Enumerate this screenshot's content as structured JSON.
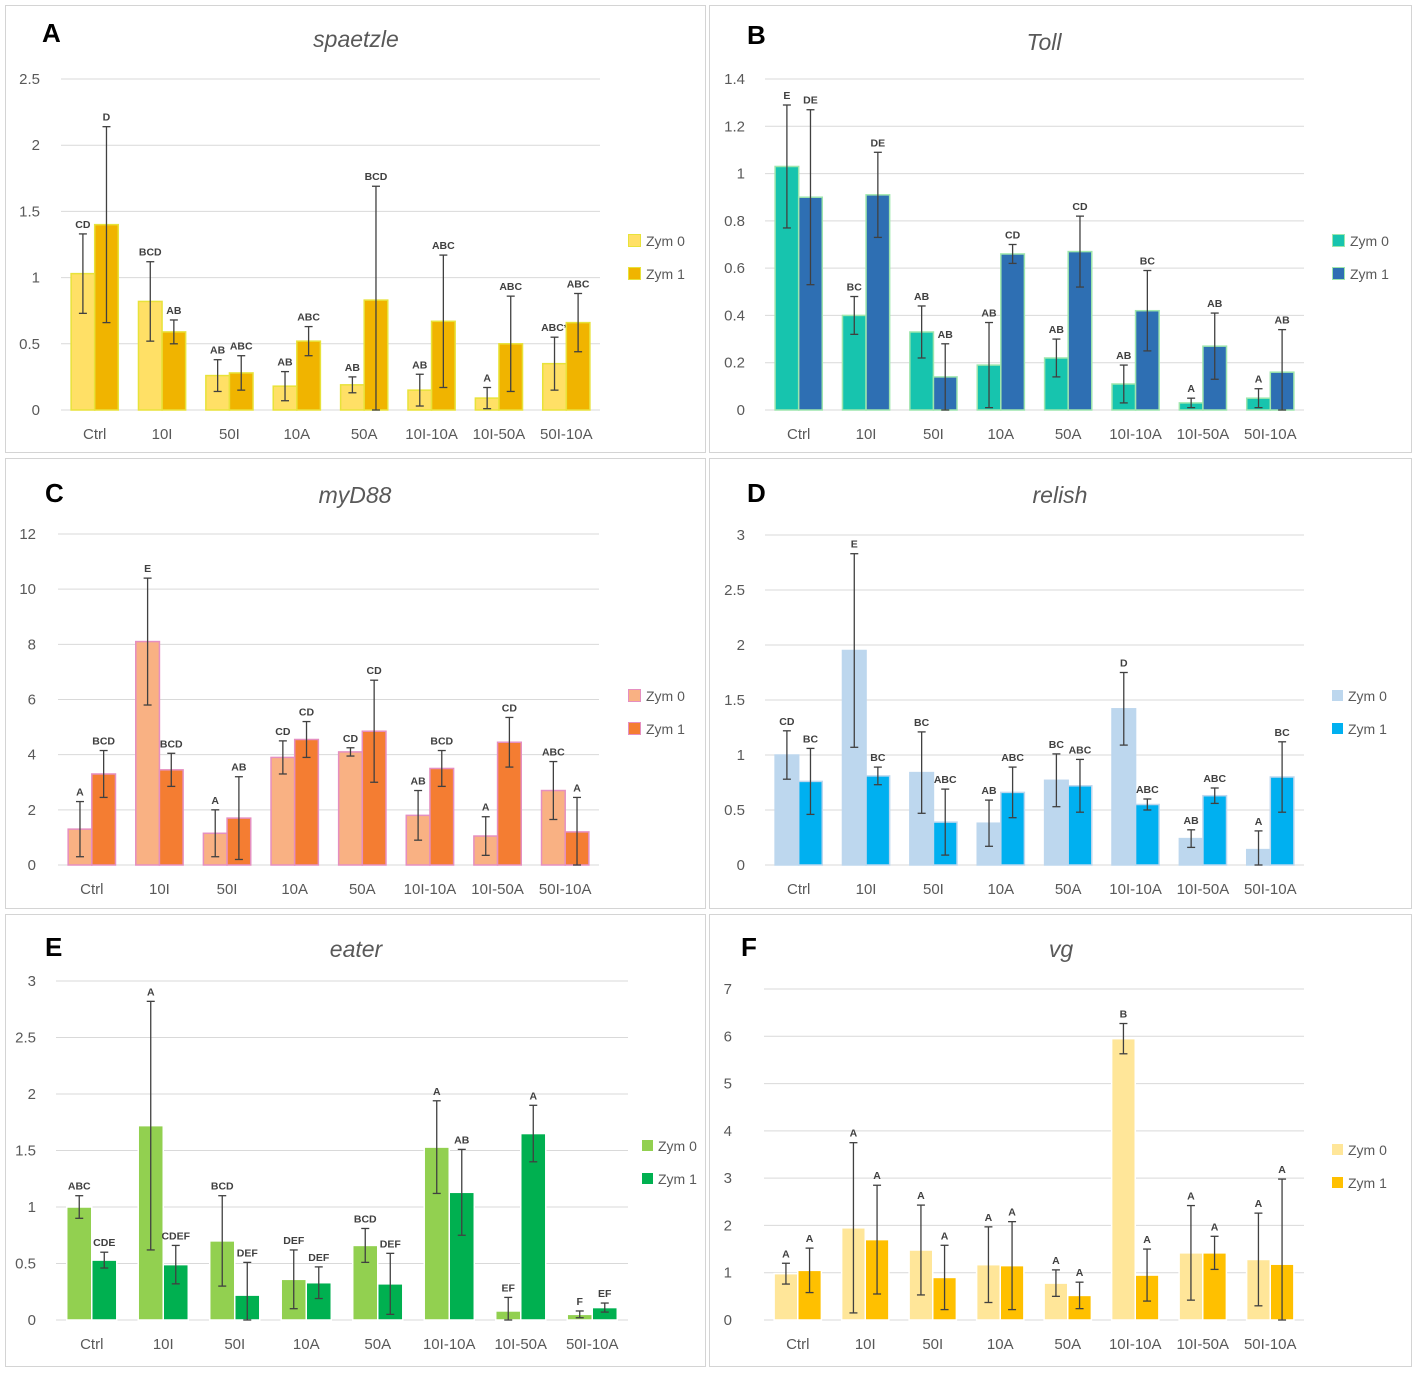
{
  "figure": {
    "categories": [
      "Ctrl",
      "10I",
      "50I",
      "10A",
      "50A",
      "10I-10A",
      "10I-50A",
      "50I-10A"
    ],
    "legend": [
      "Zym 0",
      "Zym 1"
    ]
  },
  "chart_data": [
    {
      "panel": "A",
      "title": "spaetzle",
      "type": "bar",
      "categories": [
        "Ctrl",
        "10I",
        "50I",
        "10A",
        "50A",
        "10I-10A",
        "10I-50A",
        "50I-10A"
      ],
      "ylim": [
        0,
        2.5
      ],
      "yticks": [
        "0",
        "0.5",
        "1",
        "1.5",
        "2",
        "2.5"
      ],
      "colors": [
        "#ffe066",
        "#f0b400"
      ],
      "edge": "#e8e23a",
      "series": [
        {
          "name": "Zym 0",
          "values": [
            1.03,
            0.82,
            0.26,
            0.18,
            0.19,
            0.15,
            0.09,
            0.35
          ],
          "errors": [
            0.3,
            0.3,
            0.12,
            0.11,
            0.06,
            0.12,
            0.08,
            0.2
          ],
          "letters": [
            "CD",
            "BCD",
            "AB",
            "AB",
            "AB",
            "AB",
            "A",
            "ABC*"
          ]
        },
        {
          "name": "Zym 1",
          "values": [
            1.4,
            0.59,
            0.28,
            0.52,
            0.83,
            0.67,
            0.5,
            0.66
          ],
          "errors": [
            0.74,
            0.09,
            0.13,
            0.11,
            0.86,
            0.5,
            0.36,
            0.22
          ],
          "letters": [
            "D",
            "AB",
            "ABC",
            "ABC",
            "BCD",
            "ABC",
            "ABC",
            "ABC"
          ]
        }
      ]
    },
    {
      "panel": "B",
      "title": "Toll",
      "type": "bar",
      "categories": [
        "Ctrl",
        "10I",
        "50I",
        "10A",
        "50A",
        "10I-10A",
        "10I-50A",
        "50I-10A"
      ],
      "ylim": [
        0,
        1.4
      ],
      "yticks": [
        "0",
        "0.2",
        "0.4",
        "0.6",
        "0.8",
        "1",
        "1.2",
        "1.4"
      ],
      "colors": [
        "#17c4ae",
        "#2e6fb3"
      ],
      "edge": "#9ee6ad",
      "series": [
        {
          "name": "Zym 0",
          "values": [
            1.03,
            0.4,
            0.33,
            0.19,
            0.22,
            0.11,
            0.03,
            0.05
          ],
          "errors": [
            0.26,
            0.08,
            0.11,
            0.18,
            0.08,
            0.08,
            0.02,
            0.04
          ],
          "letters": [
            "E",
            "BC",
            "AB",
            "AB",
            "AB",
            "AB",
            "A",
            "A"
          ]
        },
        {
          "name": "Zym 1",
          "values": [
            0.9,
            0.91,
            0.14,
            0.66,
            0.67,
            0.42,
            0.27,
            0.16
          ],
          "errors": [
            0.37,
            0.18,
            0.14,
            0.04,
            0.15,
            0.17,
            0.14,
            0.18
          ],
          "letters": [
            "DE",
            "DE",
            "AB",
            "CD",
            "CD",
            "BC",
            "AB",
            "AB"
          ]
        }
      ]
    },
    {
      "panel": "C",
      "title": "myD88",
      "type": "bar",
      "categories": [
        "Ctrl",
        "10I",
        "50I",
        "10A",
        "50A",
        "10I-10A",
        "10I-50A",
        "50I-10A"
      ],
      "ylim": [
        0,
        12
      ],
      "yticks": [
        "0",
        "2",
        "4",
        "6",
        "8",
        "10",
        "12"
      ],
      "colors": [
        "#f9b183",
        "#f47d32"
      ],
      "edge": "#e58fc0",
      "series": [
        {
          "name": "Zym 0",
          "values": [
            1.3,
            8.1,
            1.15,
            3.9,
            4.1,
            1.8,
            1.05,
            2.7
          ],
          "errors": [
            1.0,
            2.3,
            0.85,
            0.6,
            0.15,
            0.9,
            0.7,
            1.05
          ],
          "letters": [
            "A",
            "E",
            "A",
            "CD",
            "CD",
            "AB",
            "A",
            "ABC"
          ]
        },
        {
          "name": "Zym 1",
          "values": [
            3.3,
            3.45,
            1.7,
            4.55,
            4.85,
            3.5,
            4.45,
            1.2
          ],
          "errors": [
            0.85,
            0.6,
            1.5,
            0.65,
            1.85,
            0.65,
            0.9,
            1.25
          ],
          "letters": [
            "BCD",
            "BCD",
            "AB",
            "CD",
            "CD",
            "BCD",
            "CD",
            "A"
          ]
        }
      ]
    },
    {
      "panel": "D",
      "title": "relish",
      "type": "bar",
      "categories": [
        "Ctrl",
        "10I",
        "50I",
        "10A",
        "50A",
        "10I-10A",
        "10I-50A",
        "50I-10A"
      ],
      "ylim": [
        0,
        3
      ],
      "yticks": [
        "0",
        "0.5",
        "1",
        "1.5",
        "2",
        "2.5",
        "3"
      ],
      "colors": [
        "#bdd7ee",
        "#00b0f0"
      ],
      "edge": "#bdd7ee",
      "series": [
        {
          "name": "Zym 0",
          "values": [
            1.0,
            1.95,
            0.84,
            0.38,
            0.77,
            1.42,
            0.24,
            0.14
          ],
          "errors": [
            0.22,
            0.88,
            0.37,
            0.21,
            0.24,
            0.33,
            0.08,
            0.17
          ],
          "letters": [
            "CD",
            "E",
            "BC",
            "AB",
            "BC",
            "D",
            "AB",
            "A"
          ]
        },
        {
          "name": "Zym 1",
          "values": [
            0.76,
            0.81,
            0.39,
            0.66,
            0.72,
            0.55,
            0.63,
            0.8
          ],
          "errors": [
            0.3,
            0.08,
            0.3,
            0.23,
            0.24,
            0.05,
            0.07,
            0.32
          ],
          "letters": [
            "BC",
            "BC",
            "ABC",
            "ABC",
            "ABC",
            "ABC",
            "ABC",
            "BC"
          ]
        }
      ]
    },
    {
      "panel": "E",
      "title": "eater",
      "type": "bar",
      "categories": [
        "Ctrl",
        "10I",
        "50I",
        "10A",
        "50A",
        "10I-10A",
        "10I-50A",
        "50I-10A"
      ],
      "ylim": [
        0,
        3
      ],
      "yticks": [
        "0",
        "0.5",
        "1",
        "1.5",
        "2",
        "2.5",
        "3"
      ],
      "colors": [
        "#92d050",
        "#00b050"
      ],
      "edge": "#ffffff",
      "series": [
        {
          "name": "Zym 0",
          "values": [
            1.0,
            1.72,
            0.7,
            0.36,
            0.66,
            1.53,
            0.08,
            0.05
          ],
          "errors": [
            0.1,
            1.1,
            0.4,
            0.26,
            0.15,
            0.41,
            0.12,
            0.03
          ],
          "letters": [
            "ABC",
            "A",
            "BCD",
            "DEF",
            "BCD",
            "A",
            "EF",
            "F"
          ]
        },
        {
          "name": "Zym 1",
          "values": [
            0.53,
            0.49,
            0.22,
            0.33,
            0.32,
            1.13,
            1.65,
            0.11
          ],
          "errors": [
            0.07,
            0.17,
            0.29,
            0.14,
            0.27,
            0.38,
            0.25,
            0.04
          ],
          "letters": [
            "CDE",
            "CDEF",
            "DEF",
            "DEF",
            "DEF",
            "AB",
            "A",
            "EF"
          ]
        }
      ]
    },
    {
      "panel": "F",
      "title": "vg",
      "type": "bar",
      "categories": [
        "Ctrl",
        "10I",
        "50I",
        "10A",
        "50A",
        "10I-10A",
        "10I-50A",
        "50I-10A"
      ],
      "ylim": [
        0,
        7
      ],
      "yticks": [
        "0",
        "1",
        "2",
        "3",
        "4",
        "5",
        "6",
        "7"
      ],
      "colors": [
        "#ffe699",
        "#ffc000"
      ],
      "edge": "#ffffff",
      "series": [
        {
          "name": "Zym 0",
          "values": [
            0.98,
            1.95,
            1.48,
            1.17,
            0.78,
            5.95,
            1.42,
            1.28
          ],
          "errors": [
            0.22,
            1.8,
            0.95,
            0.8,
            0.28,
            0.32,
            1.0,
            0.98
          ],
          "letters": [
            "A",
            "A",
            "A",
            "A",
            "A",
            "B",
            "A",
            "A"
          ]
        },
        {
          "name": "Zym 1",
          "values": [
            1.05,
            1.7,
            0.9,
            1.15,
            0.52,
            0.95,
            1.42,
            1.18
          ],
          "errors": [
            0.47,
            1.15,
            0.68,
            0.93,
            0.28,
            0.55,
            0.35,
            1.8
          ],
          "letters": [
            "A",
            "A",
            "A",
            "A",
            "A",
            "A",
            "A",
            "A"
          ]
        }
      ]
    }
  ]
}
